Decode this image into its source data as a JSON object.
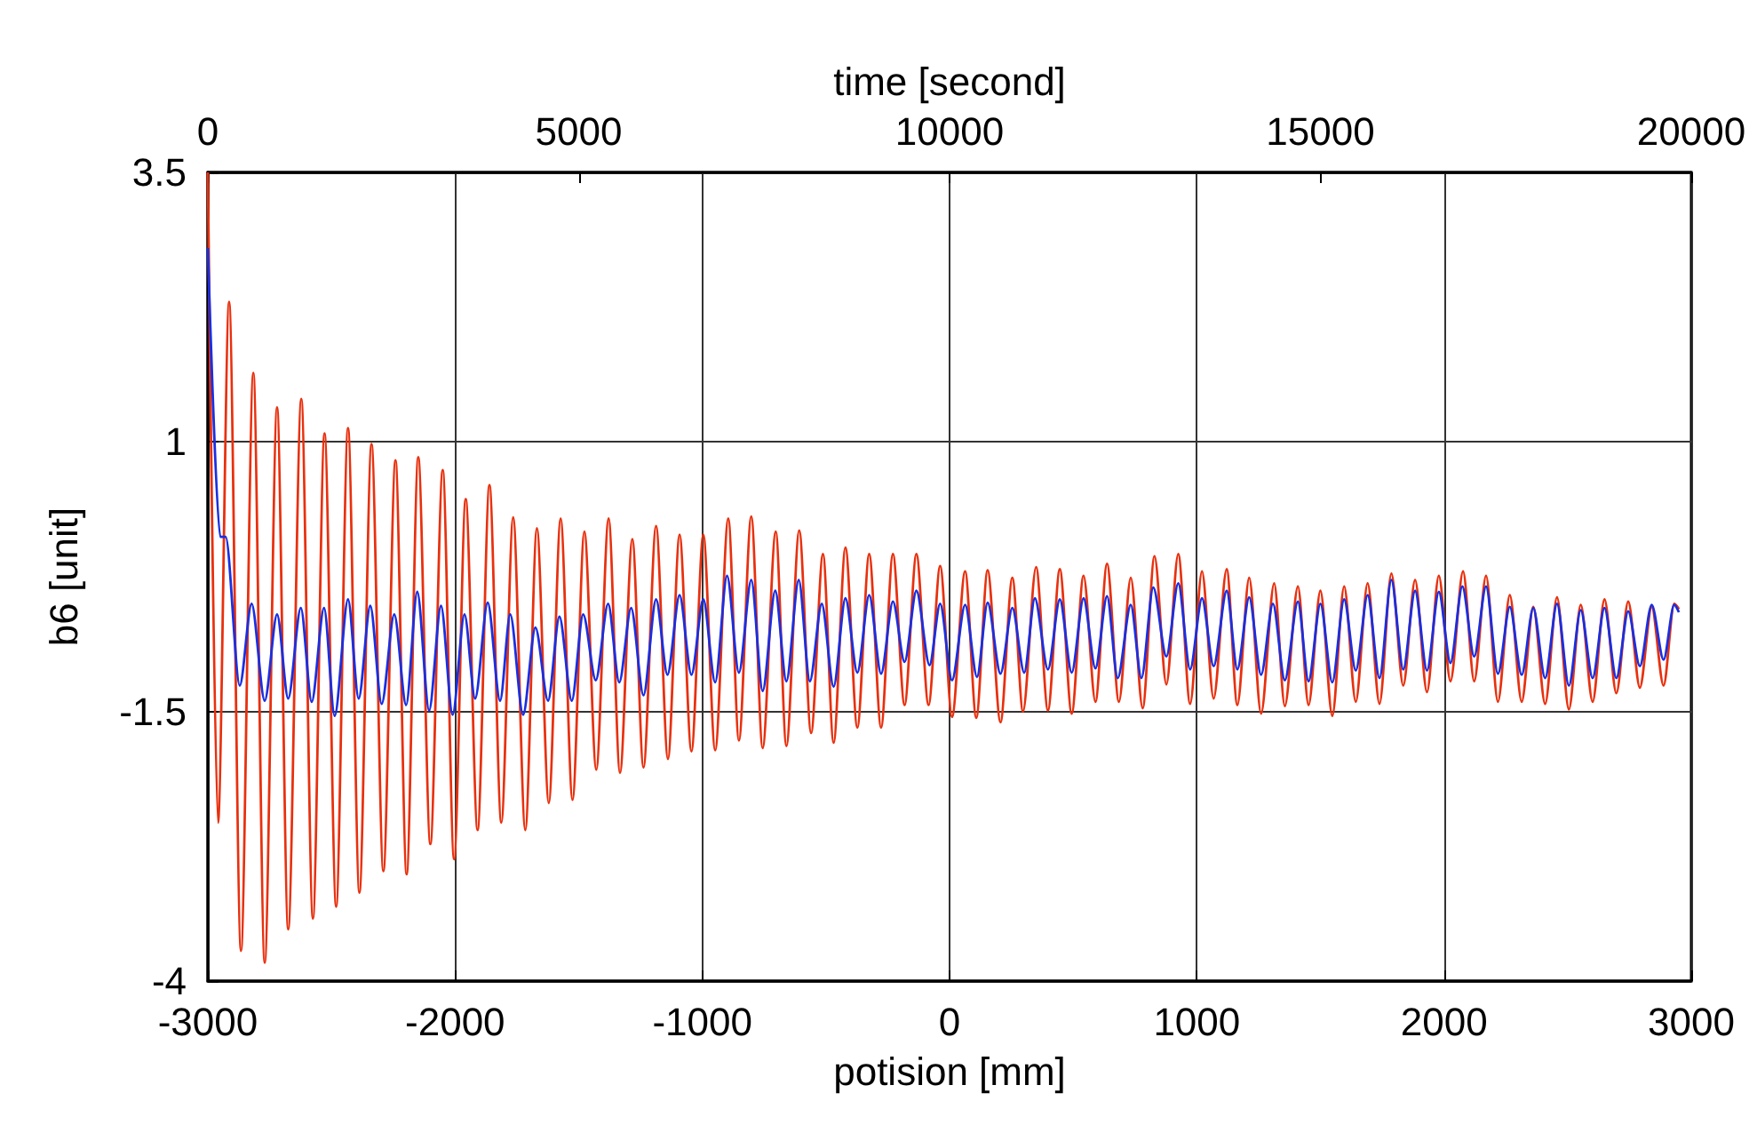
{
  "chart_data": {
    "type": "line",
    "xlabel": "potision [mm]",
    "ylabel": "b6 [unit]",
    "x2label": "time [second]",
    "xlim": [
      -3000,
      3000
    ],
    "xticks": [
      -3000,
      -2000,
      -1000,
      0,
      1000,
      2000,
      3000
    ],
    "x2lim": [
      0,
      20000
    ],
    "x2ticks": [
      0,
      5000,
      10000,
      15000,
      20000
    ],
    "ylim": [
      -4,
      3.5
    ],
    "yticks": [
      -4,
      -1.5,
      1,
      3.5
    ],
    "grid": true,
    "marker": "none",
    "line_style": "solid",
    "series": [
      {
        "color": "#e8300e",
        "x": [
          -3000,
          -2959,
          -2914,
          -2866,
          -2816,
          -2770,
          -2720,
          -2675,
          -2622,
          -2575,
          -2528,
          -2481,
          -2433,
          -2387,
          -2338,
          -2290,
          -2241,
          -2196,
          -2149,
          -2100,
          -2050,
          -2004,
          -1957,
          -1909,
          -1861,
          -1813,
          -1765,
          -1716,
          -1669,
          -1621,
          -1573,
          -1525,
          -1477,
          -1429,
          -1379,
          -1333,
          -1283,
          -1238,
          -1187,
          -1139,
          -1092,
          -1044,
          -996,
          -948,
          -895,
          -852,
          -802,
          -756,
          -703,
          -660,
          -608,
          -560,
          -512,
          -469,
          -421,
          -373,
          -325,
          -277,
          -229,
          -182,
          -134,
          -85,
          -38,
          10,
          63,
          108,
          154,
          206,
          254,
          297,
          350,
          398,
          446,
          494,
          542,
          590,
          637,
          685,
          733,
          781,
          829,
          877,
          925,
          973,
          1021,
          1068,
          1121,
          1164,
          1212,
          1260,
          1313,
          1356,
          1409,
          1452,
          1500,
          1548,
          1596,
          1643,
          1691,
          1739,
          1787,
          1835,
          1883,
          1931,
          1979,
          2026,
          2077,
          2122,
          2170,
          2218,
          2266,
          2314,
          2361,
          2409,
          2457,
          2505,
          2553,
          2601,
          2649,
          2697,
          2745,
          2792,
          2840,
          2888,
          2931,
          2950
        ],
        "values": [
          3.5,
          -2.53,
          2.3,
          -3.72,
          1.64,
          -3.83,
          1.32,
          -3.52,
          1.4,
          -3.42,
          1.08,
          -3.31,
          1.13,
          -3.18,
          0.98,
          -2.98,
          0.83,
          -3.01,
          0.86,
          -2.73,
          0.74,
          -2.87,
          0.47,
          -2.6,
          0.6,
          -2.53,
          0.3,
          -2.6,
          0.2,
          -2.35,
          0.29,
          -2.32,
          0.17,
          -2.04,
          0.29,
          -2.07,
          0.1,
          -2.02,
          0.22,
          -1.94,
          0.14,
          -1.87,
          0.14,
          -1.86,
          0.29,
          -1.77,
          0.31,
          -1.84,
          0.17,
          -1.82,
          0.18,
          -1.7,
          -0.04,
          -1.79,
          0.02,
          -1.65,
          -0.04,
          -1.65,
          -0.04,
          -1.44,
          -0.04,
          -1.44,
          -0.15,
          -1.55,
          -0.2,
          -1.56,
          -0.19,
          -1.6,
          -0.26,
          -1.5,
          -0.16,
          -1.49,
          -0.18,
          -1.52,
          -0.24,
          -1.41,
          -0.13,
          -1.41,
          -0.26,
          -1.47,
          -0.06,
          -1.25,
          -0.04,
          -1.43,
          -0.2,
          -1.38,
          -0.18,
          -1.44,
          -0.26,
          -1.52,
          -0.31,
          -1.45,
          -0.34,
          -1.44,
          -0.38,
          -1.54,
          -0.34,
          -1.41,
          -0.31,
          -1.43,
          -0.22,
          -1.26,
          -0.28,
          -1.32,
          -0.24,
          -1.22,
          -0.2,
          -1.22,
          -0.24,
          -1.41,
          -0.42,
          -1.41,
          -0.53,
          -1.43,
          -0.44,
          -1.48,
          -0.51,
          -1.41,
          -0.46,
          -1.33,
          -0.48,
          -1.28,
          -0.53,
          -1.26,
          -0.5,
          -0.55
        ]
      },
      {
        "color": "#1a2fe0",
        "x": [
          -3000,
          -2950,
          -2928,
          -2871,
          -2823,
          -2770,
          -2720,
          -2675,
          -2624,
          -2580,
          -2530,
          -2487,
          -2433,
          -2390,
          -2343,
          -2297,
          -2246,
          -2198,
          -2153,
          -2105,
          -2057,
          -2010,
          -1962,
          -1919,
          -1868,
          -1818,
          -1777,
          -1725,
          -1675,
          -1624,
          -1578,
          -1528,
          -1482,
          -1431,
          -1381,
          -1336,
          -1288,
          -1238,
          -1187,
          -1141,
          -1092,
          -1044,
          -996,
          -948,
          -900,
          -852,
          -802,
          -756,
          -705,
          -660,
          -610,
          -565,
          -517,
          -469,
          -421,
          -373,
          -325,
          -277,
          -229,
          -182,
          -134,
          -81,
          -38,
          10,
          63,
          111,
          154,
          206,
          254,
          302,
          345,
          398,
          446,
          494,
          542,
          590,
          637,
          680,
          733,
          776,
          824,
          877,
          925,
          973,
          1021,
          1068,
          1121,
          1164,
          1212,
          1260,
          1308,
          1356,
          1409,
          1452,
          1500,
          1548,
          1596,
          1643,
          1691,
          1739,
          1787,
          1835,
          1883,
          1931,
          1979,
          2026,
          2074,
          2122,
          2170,
          2218,
          2266,
          2314,
          2361,
          2409,
          2457,
          2505,
          2553,
          2601,
          2649,
          2697,
          2745,
          2792,
          2840,
          2888,
          2931,
          2950
        ],
        "values": [
          2.8,
          0.12,
          0.12,
          -1.26,
          -0.5,
          -1.4,
          -0.6,
          -1.38,
          -0.54,
          -1.41,
          -0.54,
          -1.54,
          -0.46,
          -1.38,
          -0.52,
          -1.43,
          -0.6,
          -1.44,
          -0.39,
          -1.49,
          -0.52,
          -1.53,
          -0.6,
          -1.38,
          -0.49,
          -1.4,
          -0.6,
          -1.53,
          -0.72,
          -1.4,
          -0.62,
          -1.4,
          -0.6,
          -1.21,
          -0.5,
          -1.23,
          -0.54,
          -1.35,
          -0.46,
          -1.16,
          -0.42,
          -1.16,
          -0.46,
          -1.23,
          -0.24,
          -1.14,
          -0.28,
          -1.31,
          -0.38,
          -1.22,
          -0.28,
          -1.22,
          -0.5,
          -1.27,
          -0.45,
          -1.14,
          -0.42,
          -1.15,
          -0.48,
          -1.04,
          -0.38,
          -1.07,
          -0.5,
          -1.21,
          -0.51,
          -1.18,
          -0.49,
          -1.15,
          -0.54,
          -1.14,
          -0.45,
          -1.11,
          -0.46,
          -1.14,
          -0.45,
          -1.1,
          -0.43,
          -1.19,
          -0.51,
          -1.19,
          -0.35,
          -0.99,
          -0.31,
          -1.11,
          -0.45,
          -1.08,
          -0.38,
          -1.11,
          -0.44,
          -1.16,
          -0.5,
          -1.21,
          -0.48,
          -1.22,
          -0.5,
          -1.23,
          -0.46,
          -1.12,
          -0.42,
          -1.19,
          -0.28,
          -1.11,
          -0.38,
          -1.12,
          -0.39,
          -1.05,
          -0.34,
          -0.99,
          -0.34,
          -1.15,
          -0.53,
          -1.16,
          -0.54,
          -1.19,
          -0.5,
          -1.26,
          -0.56,
          -1.19,
          -0.54,
          -1.19,
          -0.57,
          -1.08,
          -0.51,
          -1.02,
          -0.51,
          -0.58
        ]
      }
    ]
  }
}
